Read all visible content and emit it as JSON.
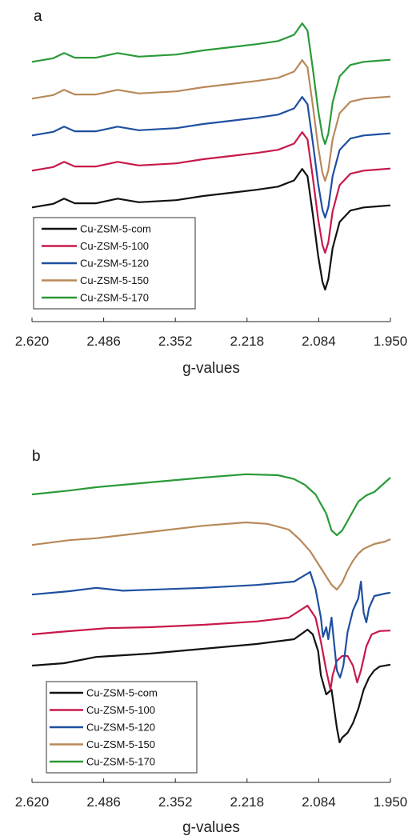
{
  "chart_data": [
    {
      "type": "line",
      "panel_label": "a",
      "xlabel": "g-values",
      "xlim": [
        2.62,
        1.95
      ],
      "x_reversed": true,
      "x_ticks": [
        "2.620",
        "2.486",
        "2.352",
        "2.218",
        "2.084",
        "1.950"
      ],
      "y_ticks_shown": false,
      "legend_position": "bottom-left",
      "series": [
        {
          "name": "Cu-ZSM-5-com",
          "color": "#111111",
          "points": [
            [
              2.62,
              -0.02
            ],
            [
              2.58,
              0.05
            ],
            [
              2.56,
              0.15
            ],
            [
              2.54,
              0.06
            ],
            [
              2.5,
              0.06
            ],
            [
              2.46,
              0.15
            ],
            [
              2.42,
              0.08
            ],
            [
              2.35,
              0.12
            ],
            [
              2.3,
              0.2
            ],
            [
              2.25,
              0.26
            ],
            [
              2.2,
              0.32
            ],
            [
              2.16,
              0.38
            ],
            [
              2.13,
              0.5
            ],
            [
              2.115,
              0.72
            ],
            [
              2.105,
              0.58
            ],
            [
              2.095,
              -0.15
            ],
            [
              2.085,
              -0.95
            ],
            [
              2.077,
              -1.45
            ],
            [
              2.072,
              -1.6
            ],
            [
              2.066,
              -1.4
            ],
            [
              2.058,
              -0.8
            ],
            [
              2.045,
              -0.3
            ],
            [
              2.025,
              -0.08
            ],
            [
              2.0,
              -0.02
            ],
            [
              1.975,
              0.0
            ],
            [
              1.95,
              0.02
            ]
          ]
        },
        {
          "name": "Cu-ZSM-5-100",
          "color": "#c8184a",
          "points": [
            [
              2.62,
              -0.02
            ],
            [
              2.58,
              0.05
            ],
            [
              2.56,
              0.15
            ],
            [
              2.54,
              0.06
            ],
            [
              2.5,
              0.06
            ],
            [
              2.46,
              0.15
            ],
            [
              2.42,
              0.08
            ],
            [
              2.35,
              0.12
            ],
            [
              2.3,
              0.2
            ],
            [
              2.25,
              0.26
            ],
            [
              2.2,
              0.32
            ],
            [
              2.16,
              0.38
            ],
            [
              2.13,
              0.5
            ],
            [
              2.115,
              0.72
            ],
            [
              2.105,
              0.58
            ],
            [
              2.095,
              -0.15
            ],
            [
              2.085,
              -0.95
            ],
            [
              2.077,
              -1.45
            ],
            [
              2.072,
              -1.6
            ],
            [
              2.066,
              -1.4
            ],
            [
              2.058,
              -0.8
            ],
            [
              2.045,
              -0.3
            ],
            [
              2.025,
              -0.08
            ],
            [
              2.0,
              -0.02
            ],
            [
              1.975,
              0.0
            ],
            [
              1.95,
              0.02
            ]
          ]
        },
        {
          "name": "Cu-ZSM-5-120",
          "color": "#1f4fa0",
          "points": [
            [
              2.62,
              -0.02
            ],
            [
              2.58,
              0.05
            ],
            [
              2.56,
              0.15
            ],
            [
              2.54,
              0.06
            ],
            [
              2.5,
              0.06
            ],
            [
              2.46,
              0.15
            ],
            [
              2.42,
              0.08
            ],
            [
              2.35,
              0.12
            ],
            [
              2.3,
              0.2
            ],
            [
              2.25,
              0.26
            ],
            [
              2.2,
              0.32
            ],
            [
              2.16,
              0.38
            ],
            [
              2.13,
              0.5
            ],
            [
              2.115,
              0.72
            ],
            [
              2.105,
              0.58
            ],
            [
              2.095,
              -0.15
            ],
            [
              2.085,
              -0.95
            ],
            [
              2.077,
              -1.45
            ],
            [
              2.072,
              -1.6
            ],
            [
              2.066,
              -1.4
            ],
            [
              2.058,
              -0.8
            ],
            [
              2.045,
              -0.3
            ],
            [
              2.025,
              -0.08
            ],
            [
              2.0,
              -0.02
            ],
            [
              1.975,
              0.0
            ],
            [
              1.95,
              0.02
            ]
          ]
        },
        {
          "name": "Cu-ZSM-5-150",
          "color": "#b8895a",
          "points": [
            [
              2.62,
              -0.02
            ],
            [
              2.58,
              0.05
            ],
            [
              2.56,
              0.15
            ],
            [
              2.54,
              0.06
            ],
            [
              2.5,
              0.06
            ],
            [
              2.46,
              0.15
            ],
            [
              2.42,
              0.08
            ],
            [
              2.35,
              0.12
            ],
            [
              2.3,
              0.2
            ],
            [
              2.25,
              0.26
            ],
            [
              2.2,
              0.32
            ],
            [
              2.16,
              0.38
            ],
            [
              2.13,
              0.5
            ],
            [
              2.115,
              0.72
            ],
            [
              2.105,
              0.58
            ],
            [
              2.095,
              -0.15
            ],
            [
              2.085,
              -0.95
            ],
            [
              2.077,
              -1.45
            ],
            [
              2.072,
              -1.6
            ],
            [
              2.066,
              -1.4
            ],
            [
              2.058,
              -0.8
            ],
            [
              2.045,
              -0.3
            ],
            [
              2.025,
              -0.08
            ],
            [
              2.0,
              -0.02
            ],
            [
              1.975,
              0.0
            ],
            [
              1.95,
              0.02
            ]
          ]
        },
        {
          "name": "Cu-ZSM-5-170",
          "color": "#2a9a38",
          "points": [
            [
              2.62,
              -0.02
            ],
            [
              2.58,
              0.05
            ],
            [
              2.56,
              0.15
            ],
            [
              2.54,
              0.06
            ],
            [
              2.5,
              0.06
            ],
            [
              2.46,
              0.15
            ],
            [
              2.42,
              0.08
            ],
            [
              2.35,
              0.12
            ],
            [
              2.3,
              0.2
            ],
            [
              2.25,
              0.26
            ],
            [
              2.2,
              0.32
            ],
            [
              2.16,
              0.38
            ],
            [
              2.13,
              0.5
            ],
            [
              2.115,
              0.72
            ],
            [
              2.105,
              0.58
            ],
            [
              2.095,
              -0.15
            ],
            [
              2.085,
              -0.95
            ],
            [
              2.077,
              -1.45
            ],
            [
              2.072,
              -1.6
            ],
            [
              2.066,
              -1.4
            ],
            [
              2.058,
              -0.8
            ],
            [
              2.045,
              -0.3
            ],
            [
              2.025,
              -0.08
            ],
            [
              2.0,
              -0.02
            ],
            [
              1.975,
              0.0
            ],
            [
              1.95,
              0.02
            ]
          ]
        }
      ]
    },
    {
      "type": "line",
      "panel_label": "b",
      "xlabel": "g-values",
      "xlim": [
        2.62,
        1.95
      ],
      "x_reversed": true,
      "x_ticks": [
        "2.620",
        "2.486",
        "2.352",
        "2.218",
        "2.084",
        "1.950"
      ],
      "y_ticks_shown": false,
      "legend_position": "bottom-left",
      "series": [
        {
          "name": "Cu-ZSM-5-com",
          "color": "#111111",
          "points": [
            [
              2.62,
              0.0
            ],
            [
              2.56,
              0.05
            ],
            [
              2.5,
              0.18
            ],
            [
              2.4,
              0.25
            ],
            [
              2.3,
              0.35
            ],
            [
              2.2,
              0.45
            ],
            [
              2.13,
              0.55
            ],
            [
              2.105,
              0.75
            ],
            [
              2.095,
              0.65
            ],
            [
              2.085,
              0.3
            ],
            [
              2.08,
              -0.2
            ],
            [
              2.07,
              -0.6
            ],
            [
              2.06,
              -0.5
            ],
            [
              2.05,
              -1.3
            ],
            [
              2.045,
              -1.6
            ],
            [
              2.04,
              -1.5
            ],
            [
              2.03,
              -1.4
            ],
            [
              2.02,
              -1.2
            ],
            [
              2.01,
              -0.9
            ],
            [
              2.0,
              -0.5
            ],
            [
              1.99,
              -0.25
            ],
            [
              1.98,
              -0.1
            ],
            [
              1.97,
              -0.02
            ],
            [
              1.95,
              0.02
            ]
          ]
        },
        {
          "name": "Cu-ZSM-5-100",
          "color": "#c8184a",
          "points": [
            [
              2.62,
              -0.05
            ],
            [
              2.57,
              0.0
            ],
            [
              2.48,
              0.08
            ],
            [
              2.4,
              0.1
            ],
            [
              2.3,
              0.15
            ],
            [
              2.2,
              0.22
            ],
            [
              2.14,
              0.3
            ],
            [
              2.105,
              0.55
            ],
            [
              2.09,
              0.3
            ],
            [
              2.08,
              -0.2
            ],
            [
              2.07,
              -0.8
            ],
            [
              2.062,
              -1.2
            ],
            [
              2.058,
              -0.9
            ],
            [
              2.05,
              -0.6
            ],
            [
              2.04,
              -0.5
            ],
            [
              2.03,
              -0.5
            ],
            [
              2.02,
              -0.7
            ],
            [
              2.012,
              -1.05
            ],
            [
              2.005,
              -0.8
            ],
            [
              1.995,
              -0.3
            ],
            [
              1.985,
              -0.05
            ],
            [
              1.97,
              0.02
            ],
            [
              1.95,
              0.03
            ]
          ]
        },
        {
          "name": "Cu-ZSM-5-120",
          "color": "#1f4fa0",
          "points": [
            [
              2.62,
              -0.02
            ],
            [
              2.55,
              0.05
            ],
            [
              2.5,
              0.12
            ],
            [
              2.45,
              0.06
            ],
            [
              2.4,
              0.08
            ],
            [
              2.3,
              0.12
            ],
            [
              2.2,
              0.18
            ],
            [
              2.13,
              0.25
            ],
            [
              2.1,
              0.45
            ],
            [
              2.09,
              0.1
            ],
            [
              2.08,
              -0.5
            ],
            [
              2.076,
              -0.9
            ],
            [
              2.07,
              -0.7
            ],
            [
              2.066,
              -0.95
            ],
            [
              2.06,
              -0.5
            ],
            [
              2.05,
              -1.6
            ],
            [
              2.044,
              -1.75
            ],
            [
              2.038,
              -1.5
            ],
            [
              2.03,
              -0.8
            ],
            [
              2.02,
              -0.35
            ],
            [
              2.01,
              -0.1
            ],
            [
              2.005,
              0.25
            ],
            [
              2.0,
              -0.4
            ],
            [
              1.995,
              -0.6
            ],
            [
              1.99,
              -0.3
            ],
            [
              1.98,
              -0.05
            ],
            [
              1.96,
              0.0
            ],
            [
              1.95,
              0.02
            ]
          ]
        },
        {
          "name": "Cu-ZSM-5-150",
          "color": "#b8895a",
          "points": [
            [
              2.62,
              -0.02
            ],
            [
              2.55,
              0.08
            ],
            [
              2.5,
              0.12
            ],
            [
              2.4,
              0.25
            ],
            [
              2.3,
              0.38
            ],
            [
              2.22,
              0.45
            ],
            [
              2.18,
              0.42
            ],
            [
              2.14,
              0.3
            ],
            [
              2.12,
              0.1
            ],
            [
              2.1,
              -0.15
            ],
            [
              2.08,
              -0.5
            ],
            [
              2.06,
              -0.85
            ],
            [
              2.05,
              -0.95
            ],
            [
              2.04,
              -0.8
            ],
            [
              2.03,
              -0.55
            ],
            [
              2.02,
              -0.35
            ],
            [
              2.01,
              -0.2
            ],
            [
              2.0,
              -0.1
            ],
            [
              1.98,
              0.0
            ],
            [
              1.96,
              0.05
            ],
            [
              1.95,
              0.1
            ]
          ]
        },
        {
          "name": "Cu-ZSM-5-170",
          "color": "#2a9a38",
          "points": [
            [
              2.62,
              0.0
            ],
            [
              2.55,
              0.08
            ],
            [
              2.5,
              0.15
            ],
            [
              2.4,
              0.25
            ],
            [
              2.3,
              0.35
            ],
            [
              2.22,
              0.42
            ],
            [
              2.16,
              0.4
            ],
            [
              2.13,
              0.32
            ],
            [
              2.11,
              0.2
            ],
            [
              2.09,
              0.0
            ],
            [
              2.07,
              -0.4
            ],
            [
              2.06,
              -0.75
            ],
            [
              2.05,
              -0.85
            ],
            [
              2.04,
              -0.75
            ],
            [
              2.03,
              -0.55
            ],
            [
              2.02,
              -0.35
            ],
            [
              2.01,
              -0.15
            ],
            [
              1.995,
              -0.02
            ],
            [
              1.98,
              0.05
            ],
            [
              1.965,
              0.2
            ],
            [
              1.95,
              0.35
            ]
          ]
        }
      ]
    }
  ]
}
